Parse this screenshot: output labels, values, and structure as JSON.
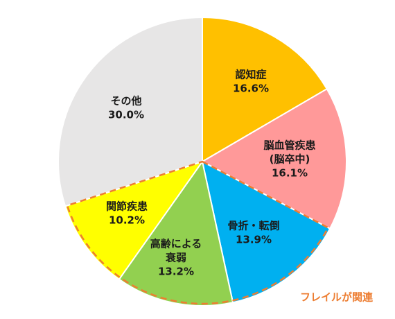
{
  "chart_data": {
    "type": "pie",
    "start": "12 o'clock",
    "direction": "clockwise",
    "slices": [
      {
        "lines": [
          "認知症",
          "16.6%"
        ],
        "value": 16.6,
        "color": "#ffc000"
      },
      {
        "lines": [
          "脳血管疾患",
          "(脳卒中)",
          "16.1%"
        ],
        "value": 16.1,
        "color": "#ff9999"
      },
      {
        "lines": [
          "骨折・転倒",
          "13.9%"
        ],
        "value": 13.9,
        "color": "#00b0f0"
      },
      {
        "lines": [
          "高齢による",
          "衰弱",
          "13.2%"
        ],
        "value": 13.2,
        "color": "#92d050"
      },
      {
        "lines": [
          "関節疾患",
          "10.2%"
        ],
        "value": 10.2,
        "color": "#ffff00"
      },
      {
        "lines": [
          "その他",
          "30.0%"
        ],
        "value": 30.0,
        "color": "#e7e6e6"
      }
    ],
    "annotation": {
      "text": "フレイルが関連",
      "color": "#ed7d31",
      "style": "dashed outline around slices 骨折・転倒, 高齢による衰弱, 関節疾患"
    }
  }
}
